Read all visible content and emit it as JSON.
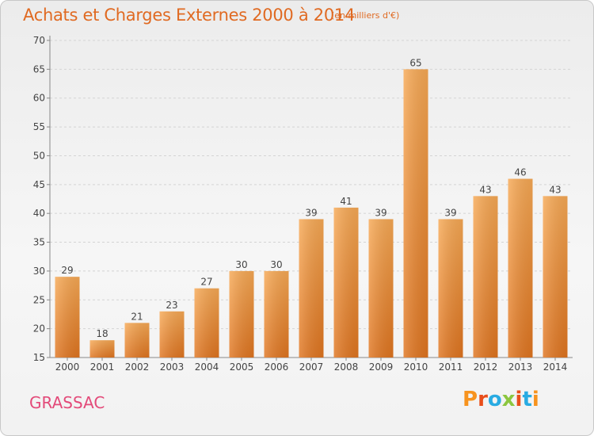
{
  "header": {
    "title": "Achats et Charges Externes 2000 à 2014",
    "unit": "(en milliers d'€)"
  },
  "footer": {
    "city": "GRASSAC",
    "brand": "Proxiti",
    "brand_colors": [
      "#f7931e",
      "#e94e1b",
      "#29abe2",
      "#8cc63f",
      "#e94e1b",
      "#29abe2",
      "#f7931e"
    ]
  },
  "colors": {
    "bar": "#f08a2c",
    "bar_light": "#f7aa56",
    "title": "#e06a22",
    "city": "#e34a79",
    "grid": "#d0d0d0"
  },
  "chart_data": {
    "type": "bar",
    "title": "Achats et Charges Externes 2000 à 2014",
    "subtitle": "(en milliers d'€)",
    "categories": [
      "2000",
      "2001",
      "2002",
      "2003",
      "2004",
      "2005",
      "2006",
      "2007",
      "2008",
      "2009",
      "2010",
      "2011",
      "2012",
      "2013",
      "2014"
    ],
    "values": [
      29,
      18,
      21,
      23,
      27,
      30,
      30,
      39,
      41,
      39,
      65,
      39,
      43,
      46,
      43
    ],
    "ylim": [
      15,
      70
    ],
    "yticks": [
      15,
      20,
      25,
      30,
      35,
      40,
      45,
      50,
      55,
      60,
      65,
      70
    ],
    "grid": true,
    "data_labels": true
  }
}
